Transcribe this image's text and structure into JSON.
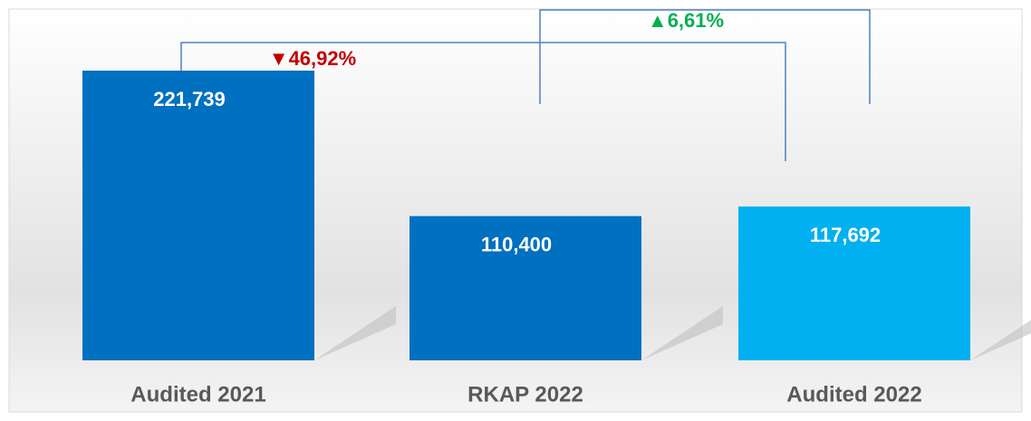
{
  "chart_data": {
    "type": "bar",
    "categories": [
      "Audited 2021",
      "RKAP 2022",
      "Audited 2022"
    ],
    "values": [
      221739,
      110400,
      117692
    ],
    "value_labels": [
      "221,739",
      "110,400",
      "117,692"
    ],
    "colors": [
      "#0070c0",
      "#0070c0",
      "#00b0f0"
    ],
    "annotations": [
      {
        "text": "▼46,92%",
        "color": "#c00000"
      },
      {
        "text": "▲6,61%",
        "color": "#00b050"
      }
    ]
  }
}
